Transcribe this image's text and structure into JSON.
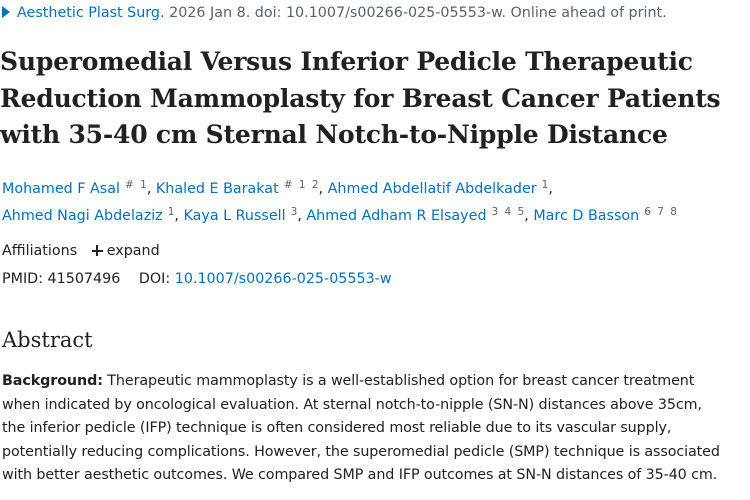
{
  "citation": {
    "journal": "Aesthetic Plast Surg.",
    "rest": "2026 Jan 8. doi: 10.1007/s00266-025-05553-w. Online ahead of print.",
    "arrow_icon": "triangle-right-icon"
  },
  "title": {
    "lines": [
      "Superomedial Versus Inferior Pedicle Therapeutic",
      "Reduction Mammoplasty for Breast Cancer Patients",
      "with 35-40 cm Sternal Notch-to-Nipple Distance"
    ]
  },
  "authors": [
    {
      "name": "Mohamed F Asal",
      "sup": "# 1",
      "sep": ","
    },
    {
      "name": "Khaled E Barakat",
      "sup": "# 1 2",
      "sep": ","
    },
    {
      "name": "Ahmed Abdellatif Abdelkader",
      "sup": "1",
      "sep": ","
    },
    {
      "name": "Ahmed Nagi Abdelaziz",
      "sup": "1",
      "sep": ","
    },
    {
      "name": "Kaya L Russell",
      "sup": "3",
      "sep": ","
    },
    {
      "name": "Ahmed Adham R Elsayed",
      "sup": "3 4 5",
      "sep": ","
    },
    {
      "name": "Marc D Basson",
      "sup": "6 7 8",
      "sep": ""
    }
  ],
  "affiliations": {
    "label": "Affiliations",
    "expand_label": "expand",
    "expand_icon": "plus-icon"
  },
  "ids": {
    "pmid_label": "PMID:",
    "pmid": "41507496",
    "doi_label": "DOI:",
    "doi": "10.1007/s00266-025-05553-w"
  },
  "abstract": {
    "heading": "Abstract",
    "background_label": "Background:",
    "lines": [
      "Therapeutic mammoplasty is a well-established option for breast cancer treatment",
      "when indicated by oncological evaluation. At sternal notch-to-nipple (SN-N) distances above 35cm,",
      "the inferior pedicle (IFP) technique is often considered most reliable due to its vascular supply,",
      "potentially reducing complications. However, the superomedial pedicle (SMP) technique is associated",
      "with better aesthetic outcomes. We compared SMP and IFP outcomes at SN-N distances of 35-40 cm."
    ]
  },
  "colors": {
    "link": "#0071bc",
    "text": "#212121",
    "muted": "#5b616b"
  }
}
